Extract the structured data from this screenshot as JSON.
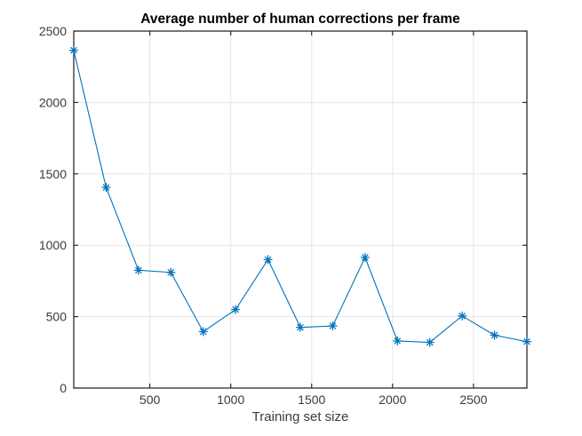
{
  "figure": {
    "background": "#ffffff"
  },
  "colors": {
    "axis": "#1c1c1c",
    "grid": "#e6e6e6",
    "tick_label": "#3b3b3b",
    "title": "#000000"
  },
  "chart_data": {
    "type": "line",
    "title": "Average number of human corrections per frame",
    "xlabel": "Training set size",
    "series": [
      {
        "x": [
          30,
          230,
          430,
          630,
          830,
          1030,
          1230,
          1430,
          1630,
          1830,
          2030,
          2230,
          2430,
          2630,
          2830
        ],
        "y": [
          2365,
          1405,
          825,
          810,
          395,
          550,
          900,
          425,
          435,
          915,
          330,
          320,
          505,
          370,
          325
        ],
        "color": "#0072BD",
        "marker": "asterisk",
        "line_style": "solid"
      }
    ],
    "xlim": [
      30,
      2830
    ],
    "ylim": [
      0,
      2500
    ],
    "xticks": [
      500,
      1000,
      1500,
      2000,
      2500
    ],
    "yticks": [
      0,
      500,
      1000,
      1500,
      2000,
      2500
    ],
    "grid": true,
    "legend": null
  }
}
